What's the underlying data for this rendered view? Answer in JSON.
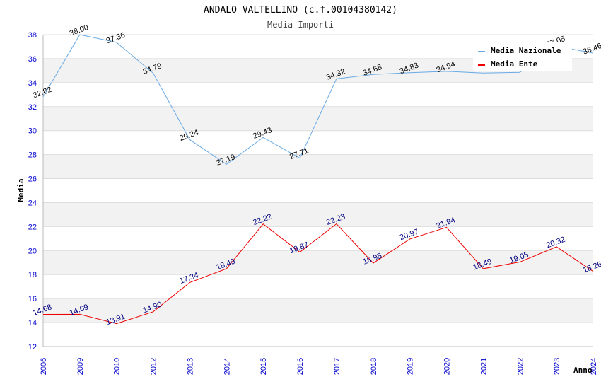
{
  "chart_data": {
    "type": "line",
    "title": "ANDALO VALTELLINO (c.f.00104380142)",
    "subtitle": "Media Importi",
    "xlabel": "Anno",
    "ylabel": "Media",
    "ylim": [
      12,
      38
    ],
    "yticks": [
      "12",
      "14",
      "16",
      "18",
      "20",
      "22",
      "24",
      "26",
      "28",
      "30",
      "32",
      "34",
      "36",
      "38"
    ],
    "categories": [
      "2006",
      "2009",
      "2010",
      "2012",
      "2013",
      "2014",
      "2015",
      "2016",
      "2017",
      "2018",
      "2019",
      "2020",
      "2021",
      "2022",
      "2023",
      "2024"
    ],
    "series": [
      {
        "name": "Media Nazionale",
        "color": "#6aaae4",
        "values": [
          32.82,
          38.0,
          37.36,
          34.79,
          29.24,
          27.19,
          29.43,
          27.71,
          34.32,
          34.68,
          34.83,
          34.94,
          34.8,
          34.86,
          37.05,
          36.46
        ],
        "labels": [
          "32.82",
          "38.00",
          "37.36",
          "34.79",
          "29.24",
          "27.19",
          "29.43",
          "27.71",
          "34.32",
          "34.68",
          "34.83",
          "34.94",
          "",
          "",
          "37.05",
          "36.46"
        ]
      },
      {
        "name": "Media Ente",
        "color": "#ee0000",
        "values": [
          14.68,
          14.69,
          13.91,
          14.9,
          17.34,
          18.49,
          22.22,
          19.87,
          22.23,
          18.95,
          20.97,
          21.94,
          18.49,
          19.05,
          20.32,
          18.26
        ],
        "labels": [
          "14.68",
          "14.69",
          "13.91",
          "14.90",
          "17.34",
          "18.49",
          "22.22",
          "19.87",
          "22.23",
          "18.95",
          "20.97",
          "21.94",
          "18.49",
          "19.05",
          "20.32",
          "18.26"
        ]
      }
    ],
    "legend_position": "top-right"
  }
}
